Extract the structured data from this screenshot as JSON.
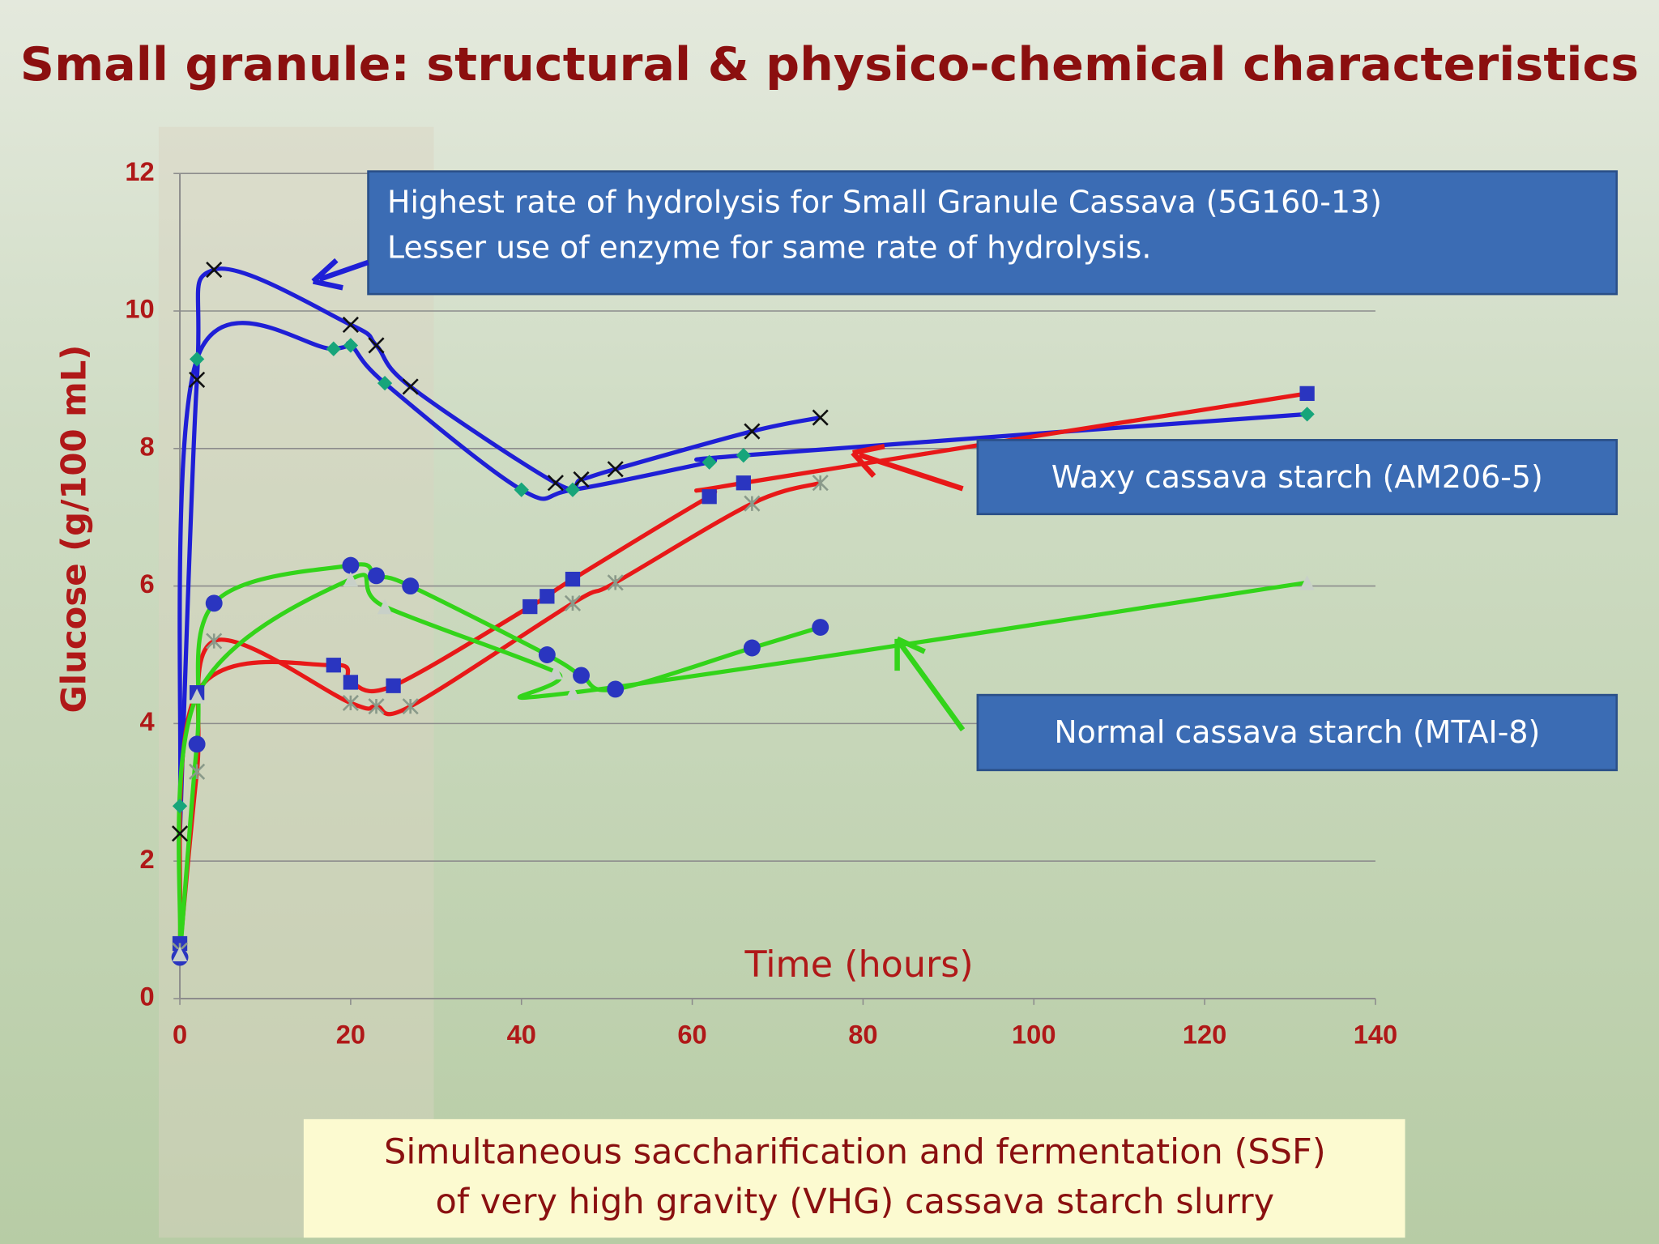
{
  "chart_data": {
    "type": "line",
    "title": "Small granule: structural & physico-chemical characteristics",
    "x_label": "Time (hours)",
    "y_label": "Glucose (g/100 mL)",
    "xlim": [
      0,
      140
    ],
    "xticks": [
      0,
      20,
      40,
      60,
      80,
      100,
      120,
      140
    ],
    "ylim": [
      0,
      12
    ],
    "yticks": [
      0,
      2,
      4,
      6,
      8,
      10,
      12
    ],
    "grid": true,
    "annotations": [
      {
        "lines": [
          "Highest rate of hydrolysis for Small Granule Cassava (5G160-13)",
          " Lesser use of enzyme for same rate of hydrolysis."
        ]
      },
      {
        "lines": [
          "Waxy cassava starch  (AM206-5)"
        ]
      },
      {
        "lines": [
          "Normal cassava starch  (MTAI-8)"
        ]
      }
    ],
    "caption_lines": [
      "Simultaneous saccharification and fermentation (SSF)",
      "of very high gravity (VHG)  cassava starch slurry"
    ],
    "series": [
      {
        "color": "#1f1fd6",
        "marker": "x",
        "marker_color": "#111111",
        "x": [
          0,
          2,
          4,
          20,
          23,
          27,
          44,
          47,
          51,
          67,
          75
        ],
        "values": [
          2.4,
          9.0,
          10.6,
          9.8,
          9.5,
          8.9,
          7.5,
          7.55,
          7.7,
          8.25,
          8.45
        ]
      },
      {
        "color": "#1f1fd6",
        "marker": "diamond",
        "marker_color": "#17a57a",
        "x": [
          0,
          2,
          18,
          20,
          24,
          40,
          46,
          62,
          66,
          132
        ],
        "values": [
          2.8,
          9.3,
          9.45,
          9.5,
          8.95,
          7.4,
          7.4,
          7.8,
          7.9,
          8.5
        ]
      },
      {
        "color": "#e81818",
        "marker": "square",
        "marker_color": "#2a35c0",
        "x": [
          0,
          2,
          18,
          20,
          25,
          41,
          43,
          46,
          62,
          66,
          132
        ],
        "values": [
          0.8,
          4.45,
          4.85,
          4.6,
          4.55,
          5.7,
          5.85,
          6.1,
          7.3,
          7.5,
          8.8
        ]
      },
      {
        "color": "#e81818",
        "marker": "star",
        "marker_color": "#8a9a8a",
        "x": [
          0,
          2,
          4,
          20,
          23,
          27,
          46,
          51,
          67,
          75
        ],
        "values": [
          0.7,
          3.3,
          5.2,
          4.3,
          4.25,
          4.25,
          5.75,
          6.05,
          7.2,
          7.5
        ]
      },
      {
        "color": "#33d41a",
        "marker": "circle",
        "marker_color": "#2a35c0",
        "x": [
          0,
          2,
          4,
          20,
          23,
          27,
          43,
          47,
          51,
          67,
          75
        ],
        "values": [
          0.6,
          3.7,
          5.75,
          6.3,
          6.15,
          6.0,
          5.0,
          4.7,
          4.5,
          5.1,
          5.4
        ]
      },
      {
        "color": "#33d41a",
        "marker": "triangle",
        "marker_color": "#c8d0c8",
        "x": [
          0,
          2,
          20,
          24,
          44,
          46,
          132
        ],
        "values": [
          0.65,
          4.4,
          6.1,
          5.7,
          4.75,
          4.45,
          6.05
        ]
      }
    ]
  }
}
